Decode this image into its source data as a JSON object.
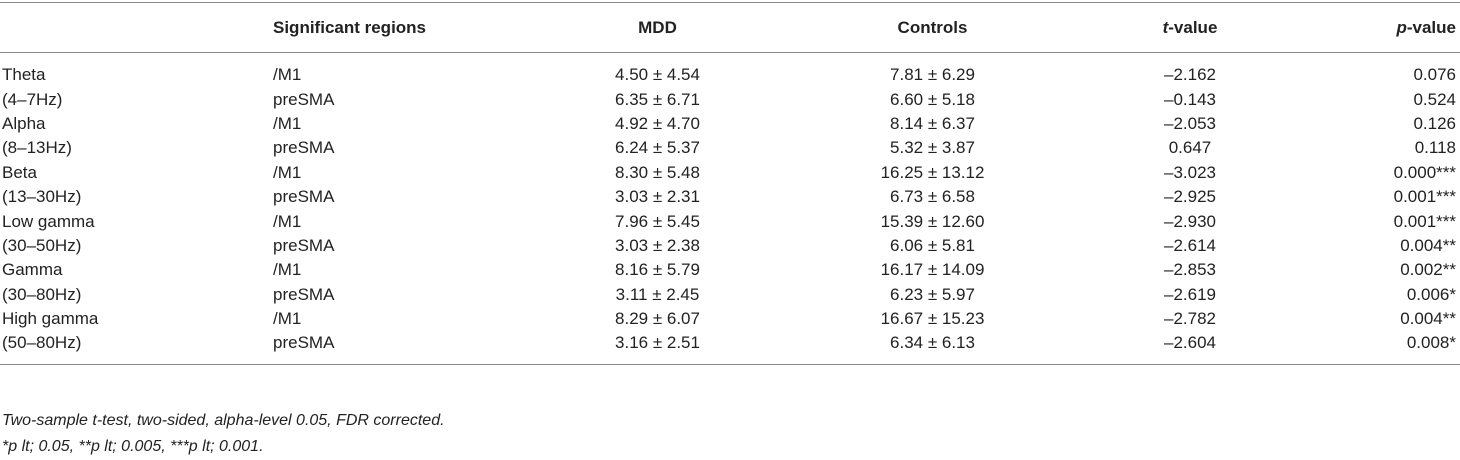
{
  "table": {
    "header": [
      "Significant regions",
      "MDD",
      "Controls",
      {
        "italic": "t",
        "text": "-value"
      },
      {
        "italic": "p",
        "text": "-value"
      }
    ],
    "rows": [
      [
        "Theta",
        "/M1",
        "4.50 ± 4.54",
        "7.81 ± 6.29",
        "–2.162",
        "0.076"
      ],
      [
        "(4–7Hz)",
        "preSMA",
        "6.35 ± 6.71",
        "6.60 ± 5.18",
        "–0.143",
        "0.524"
      ],
      [
        "Alpha",
        "/M1",
        "4.92 ± 4.70",
        "8.14 ± 6.37",
        "–2.053",
        "0.126"
      ],
      [
        "(8–13Hz)",
        "preSMA",
        "6.24 ± 5.37",
        "5.32 ± 3.87",
        "0.647",
        "0.118"
      ],
      [
        "Beta",
        "/M1",
        "8.30 ± 5.48",
        "16.25 ± 13.12",
        "–3.023",
        "0.000***"
      ],
      [
        "(13–30Hz)",
        "preSMA",
        "3.03 ± 2.31",
        "6.73 ± 6.58",
        "–2.925",
        "0.001***"
      ],
      [
        "Low gamma",
        "/M1",
        "7.96 ± 5.45",
        "15.39 ± 12.60",
        "–2.930",
        "0.001***"
      ],
      [
        "(30–50Hz)",
        "preSMA",
        "3.03 ± 2.38",
        "6.06 ± 5.81",
        "–2.614",
        "0.004**"
      ],
      [
        "Gamma",
        "/M1",
        "8.16 ± 5.79",
        "16.17 ± 14.09",
        "–2.853",
        "0.002**"
      ],
      [
        "(30–80Hz)",
        "preSMA",
        "3.11 ± 2.45",
        "6.23 ± 5.97",
        "–2.619",
        "0.006*"
      ],
      [
        "High gamma",
        "/M1",
        "8.29 ± 6.07",
        "16.67 ± 15.23",
        "–2.782",
        "0.004**"
      ],
      [
        "(50–80Hz)",
        "preSMA",
        "3.16 ± 2.51",
        "6.34 ± 6.13",
        "–2.604",
        "0.008*"
      ]
    ],
    "footnotes": [
      "Two-sample t-test, two-sided, alpha-level 0.05, FDR corrected.",
      "*p lt; 0.05, **p lt; 0.005, ***p lt; 0.001."
    ]
  }
}
